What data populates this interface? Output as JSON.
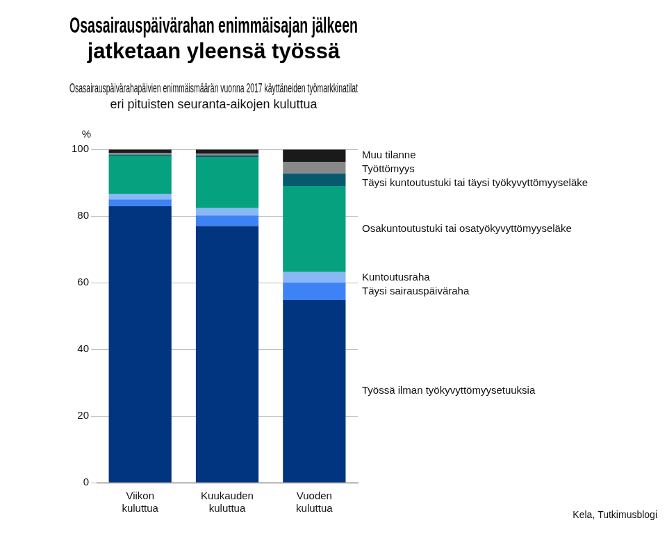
{
  "chart_data": {
    "type": "bar",
    "title": [
      "Osasairauspäivärahan enimmäisajan jälkeen",
      "jatketaan yleensä työssä"
    ],
    "subtitle": [
      "Osasairauspäivärahapäivien enimmäismäärän vuonna 2017 käyttäneiden työmarkkinatilat",
      "eri pituisten seuranta-aikojen kuluttua"
    ],
    "ylabel": "%",
    "source": "Kela, Tutkimusblogi",
    "categories": [
      "Viikon kuluttua",
      "Kuukauden kuluttua",
      "Vuoden kuluttua"
    ],
    "series": [
      {
        "name": "Työssä ilman työkyvyttömyysetuuksia",
        "color": "#023580",
        "values": [
          83,
          77,
          54.8
        ]
      },
      {
        "name": "Täysi sairauspäiväraha",
        "color": "#3d83f5",
        "values": [
          2,
          3.2,
          5.2
        ]
      },
      {
        "name": "Kuntoutusraha",
        "color": "#8ab8f7",
        "values": [
          1.7,
          2.2,
          3.2
        ]
      },
      {
        "name": "Osakuntoutustuki tai osatyökyvyttömyyseläke",
        "color": "#06a17e",
        "values": [
          11.3,
          15.2,
          25.8
        ]
      },
      {
        "name": "Täysi kuntoutustuki tai täysi työkyvyttömyyseläke",
        "color": "#065a6b",
        "values": [
          0.5,
          0.6,
          3.8
        ]
      },
      {
        "name": "Työttömyys",
        "color": "#888888",
        "values": [
          0.4,
          0.6,
          3.4
        ]
      },
      {
        "name": "Muu tilanne",
        "color": "#1a1a1a",
        "values": [
          1.1,
          1.2,
          3.8
        ]
      }
    ],
    "ylim": [
      0,
      100
    ],
    "yticks": [
      0,
      20,
      40,
      60,
      80,
      100
    ],
    "stacked": true,
    "grid": true,
    "legend": "right"
  }
}
